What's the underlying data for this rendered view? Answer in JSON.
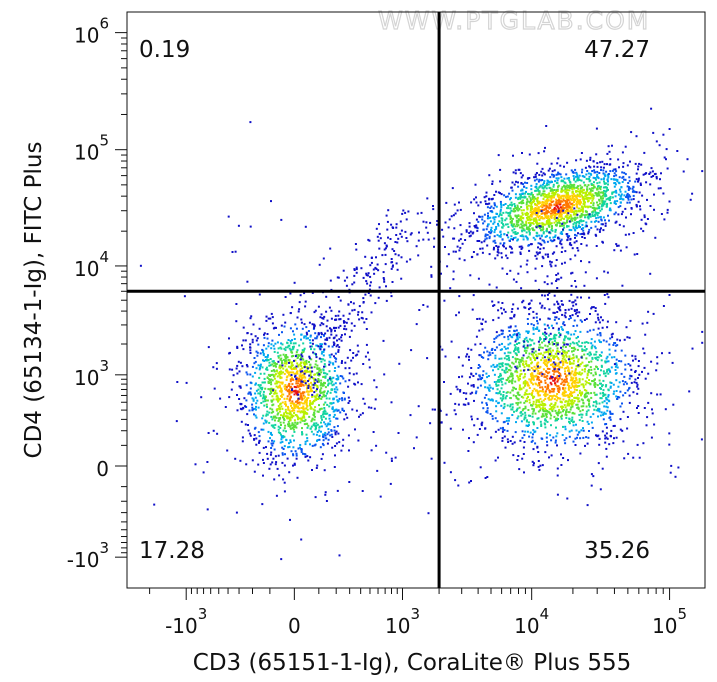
{
  "watermark": "WWW.PTGLAB.COM",
  "chart_data": {
    "type": "scatter",
    "plot_style": "flow cytometry density dot plot, biexponential axes",
    "xlabel": "CD3 (65151-1-Ig), CoraLite® Plus 555",
    "ylabel": "CD4 (65134-1-Ig), FITC Plus",
    "x_ticks": [
      {
        "base": "-10",
        "exp": "3",
        "value": -1000
      },
      {
        "base": "0",
        "exp": "",
        "value": 0
      },
      {
        "base": "10",
        "exp": "3",
        "value": 1000
      },
      {
        "base": "10",
        "exp": "4",
        "value": 10000
      },
      {
        "base": "10",
        "exp": "5",
        "value": 100000
      }
    ],
    "y_ticks": [
      {
        "base": "-10",
        "exp": "3",
        "value": -1000
      },
      {
        "base": "0",
        "exp": "",
        "value": 0
      },
      {
        "base": "10",
        "exp": "3",
        "value": 1000
      },
      {
        "base": "10",
        "exp": "4",
        "value": 10000
      },
      {
        "base": "10",
        "exp": "5",
        "value": 100000
      },
      {
        "base": "10",
        "exp": "6",
        "value": 1000000
      }
    ],
    "quadrant_gate": {
      "x": 2000,
      "y": 6000
    },
    "quadrants": [
      {
        "position": "top-left",
        "percent": "0.19"
      },
      {
        "position": "top-right",
        "percent": "47.27"
      },
      {
        "position": "bottom-left",
        "percent": "17.28"
      },
      {
        "position": "bottom-right",
        "percent": "35.26"
      }
    ],
    "populations": [
      {
        "quadrant": "bottom-left",
        "x_center": 0,
        "y_center": 700,
        "density": "high"
      },
      {
        "quadrant": "top-right",
        "x_center": 15000,
        "y_center": 33000,
        "density": "very high"
      },
      {
        "quadrant": "bottom-right",
        "x_center": 14000,
        "y_center": 900,
        "density": "high"
      }
    ],
    "colormap": [
      "#1010c8",
      "#0a55f0",
      "#00a8f0",
      "#12d4a0",
      "#5ae03a",
      "#b8f000",
      "#ffd000",
      "#ff7800",
      "#e81010"
    ],
    "grid": false,
    "legend": "none"
  }
}
